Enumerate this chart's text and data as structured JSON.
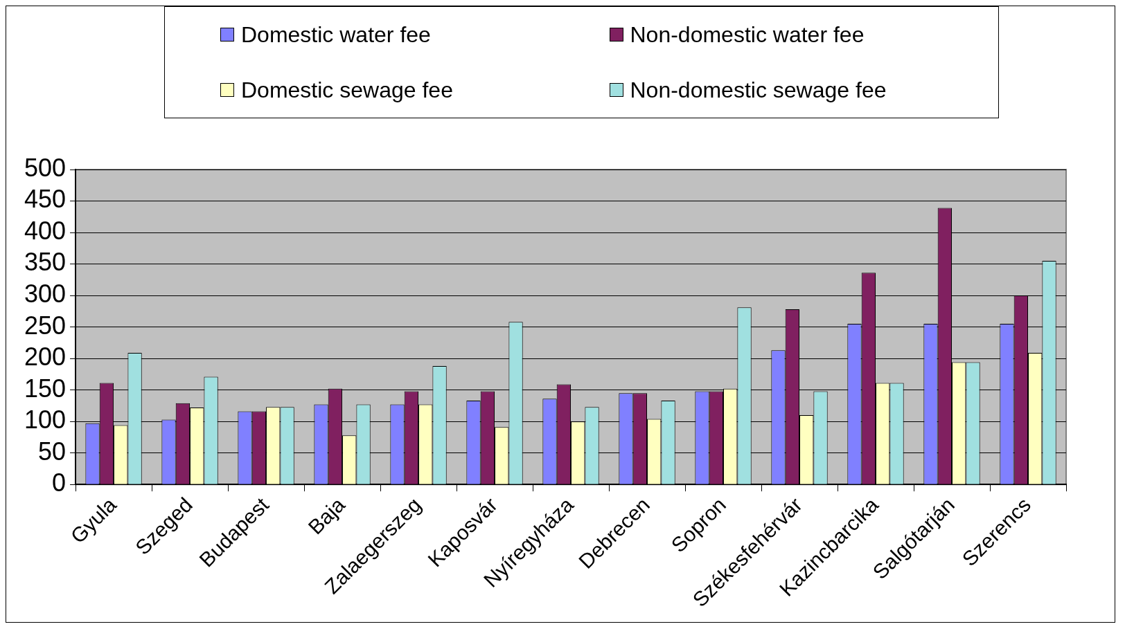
{
  "chart_data": {
    "type": "bar",
    "categories": [
      "Gyula",
      "Szeged",
      "Budapest",
      "Baja",
      "Zalaegerszeg",
      "Kaposvár",
      "Nyíregyháza",
      "Debrecen",
      "Sopron",
      "Székesfehérvár",
      "Kazincbarcika",
      "Salgótarján",
      "Szerencs"
    ],
    "series": [
      {
        "name": "Domestic water fee",
        "color": "#8080ff",
        "values": [
          97,
          103,
          116,
          127,
          127,
          133,
          136,
          145,
          148,
          213,
          255,
          255,
          255
        ]
      },
      {
        "name": "Non-domestic water fee",
        "color": "#802060",
        "values": [
          161,
          129,
          116,
          152,
          148,
          148,
          159,
          145,
          148,
          278,
          336,
          439,
          300
        ]
      },
      {
        "name": "Domestic sewage fee",
        "color": "#ffffc0",
        "values": [
          94,
          122,
          123,
          78,
          127,
          91,
          100,
          104,
          152,
          110,
          161,
          194,
          209
        ]
      },
      {
        "name": "Non-domestic sewage fee",
        "color": "#a0e0e0",
        "values": [
          209,
          171,
          123,
          127,
          188,
          258,
          123,
          133,
          281,
          148,
          161,
          194,
          355
        ]
      }
    ],
    "ylim": [
      0,
      500
    ],
    "yticks": [
      0,
      50,
      100,
      150,
      200,
      250,
      300,
      350,
      400,
      450,
      500
    ],
    "grid": "y",
    "legend": "top"
  }
}
